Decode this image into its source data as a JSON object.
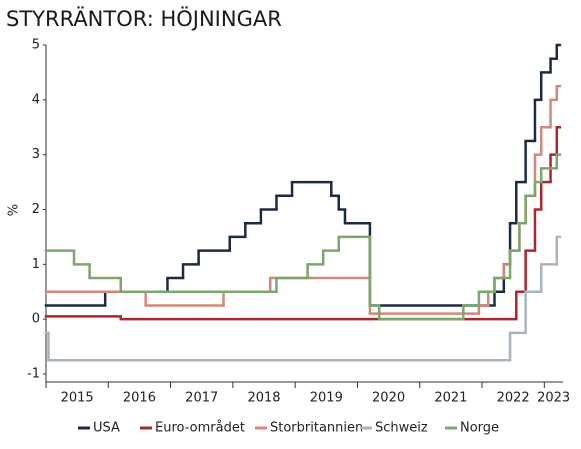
{
  "chart_data": {
    "type": "step",
    "title": "STYRRÄNTOR: HÖJNINGAR",
    "y_label": "%",
    "xlim": [
      2015,
      2023.3
    ],
    "ylim": [
      -1,
      5
    ],
    "yticks": [
      -1,
      0,
      1,
      2,
      3,
      4,
      5
    ],
    "xticks": [
      {
        "value": 2015,
        "label": "2015"
      },
      {
        "value": 2016,
        "label": "2016"
      },
      {
        "value": 2017,
        "label": "2017"
      },
      {
        "value": 2018,
        "label": "2018"
      },
      {
        "value": 2019,
        "label": "2019"
      },
      {
        "value": 2020,
        "label": "2020"
      },
      {
        "value": 2021,
        "label": "2021"
      },
      {
        "value": 2022,
        "label": "2022"
      },
      {
        "value": 2023,
        "label": "2023"
      }
    ],
    "legend": "bottom",
    "series": [
      {
        "name": "USA",
        "color": "#1c2a44",
        "x": [
          2015,
          2015.95,
          2016.95,
          2017.2,
          2017.45,
          2017.95,
          2018.2,
          2018.45,
          2018.7,
          2018.95,
          2019.58,
          2019.7,
          2019.8,
          2020.2,
          2022.2,
          2022.35,
          2022.45,
          2022.55,
          2022.7,
          2022.85,
          2022.95,
          2023.1,
          2023.2,
          2023.25
        ],
        "values": [
          0.25,
          0.5,
          0.75,
          1,
          1.25,
          1.5,
          1.75,
          2,
          2.25,
          2.5,
          2.25,
          2,
          1.75,
          0.25,
          0.5,
          1,
          1.75,
          2.5,
          3.25,
          4,
          4.5,
          4.75,
          5,
          5
        ]
      },
      {
        "name": "Euro-området",
        "color": "#a8282e",
        "x": [
          2015,
          2016.2,
          2022.55,
          2022.7,
          2022.85,
          2022.95,
          2023.1,
          2023.2,
          2023.25
        ],
        "values": [
          0.05,
          0,
          0.5,
          1.25,
          2,
          2.5,
          3,
          3.5,
          3.5
        ]
      },
      {
        "name": "Storbritannien",
        "color": "#d4877a",
        "x": [
          2015,
          2016.6,
          2017.85,
          2018.6,
          2020.2,
          2021.95,
          2022.1,
          2022.2,
          2022.35,
          2022.45,
          2022.6,
          2022.7,
          2022.85,
          2022.95,
          2023.1,
          2023.2,
          2023.25
        ],
        "values": [
          0.5,
          0.25,
          0.5,
          0.75,
          0.1,
          0.25,
          0.5,
          0.75,
          1,
          1.25,
          1.75,
          2.25,
          3,
          3.5,
          4,
          4.25,
          4.25
        ]
      },
      {
        "name": "Schweiz",
        "color": "#a9b4bd",
        "x": [
          2015,
          2015.04,
          2022.45,
          2022.7,
          2022.95,
          2023.2,
          2023.25
        ],
        "values": [
          -0.25,
          -0.75,
          -0.25,
          0.5,
          1,
          1.5,
          1.5
        ]
      },
      {
        "name": "Norge",
        "color": "#7aa86a",
        "x": [
          2015,
          2015.45,
          2015.7,
          2016.2,
          2018.7,
          2019.2,
          2019.45,
          2019.7,
          2020.2,
          2020.35,
          2021.7,
          2021.95,
          2022.2,
          2022.45,
          2022.6,
          2022.7,
          2022.85,
          2022.95,
          2023.2,
          2023.25
        ],
        "values": [
          1.25,
          1,
          0.75,
          0.5,
          0.75,
          1,
          1.25,
          1.5,
          0.25,
          0,
          0.25,
          0.5,
          0.75,
          1.25,
          1.75,
          2.25,
          2.5,
          2.75,
          3,
          3
        ]
      }
    ]
  }
}
